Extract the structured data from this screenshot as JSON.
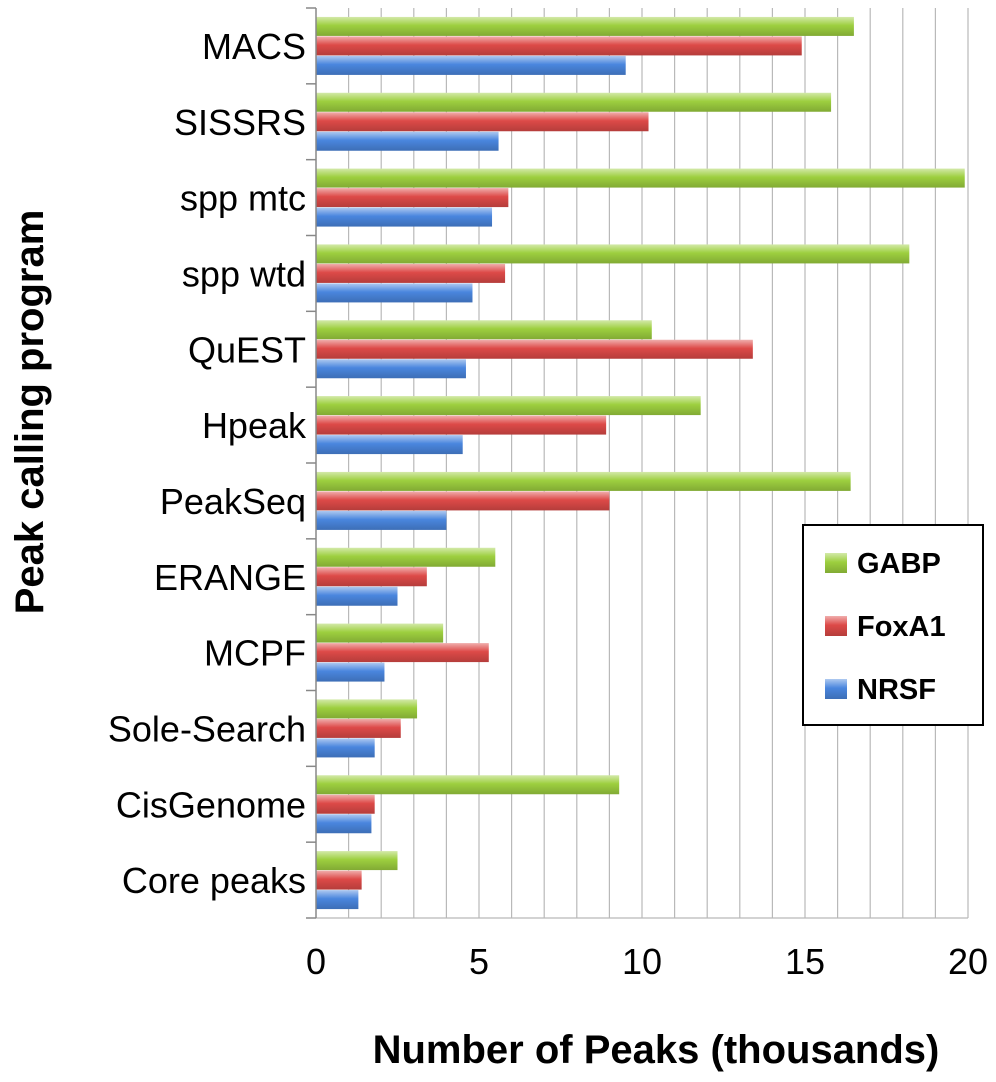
{
  "chart_data": {
    "type": "bar",
    "orientation": "horizontal",
    "title": "",
    "xlabel": "Number of Peaks (thousands)",
    "ylabel": "Peak calling program",
    "xlim": [
      0,
      20
    ],
    "xticks": [
      0,
      5,
      10,
      15,
      20
    ],
    "grid": "vertical",
    "legend_position": "right",
    "categories": [
      "MACS",
      "SISSRS",
      "spp mtc",
      "spp wtd",
      "QuEST",
      "Hpeak",
      "PeakSeq",
      "ERANGE",
      "MCPF",
      "Sole-Search",
      "CisGenome",
      "Core peaks"
    ],
    "series": [
      {
        "name": "GABP",
        "color": "#9dcf3f",
        "values": [
          16.5,
          15.8,
          19.9,
          18.2,
          10.3,
          11.8,
          16.4,
          5.5,
          3.9,
          3.1,
          9.3,
          2.5
        ]
      },
      {
        "name": "FoxA1",
        "color": "#dd4a48",
        "values": [
          14.9,
          10.2,
          5.9,
          5.8,
          13.4,
          8.9,
          9.0,
          3.4,
          5.3,
          2.6,
          1.8,
          1.4
        ]
      },
      {
        "name": "NRSF",
        "color": "#4a86de",
        "values": [
          9.5,
          5.6,
          5.4,
          4.8,
          4.6,
          4.5,
          4.0,
          2.5,
          2.1,
          1.8,
          1.7,
          1.3
        ]
      }
    ]
  }
}
